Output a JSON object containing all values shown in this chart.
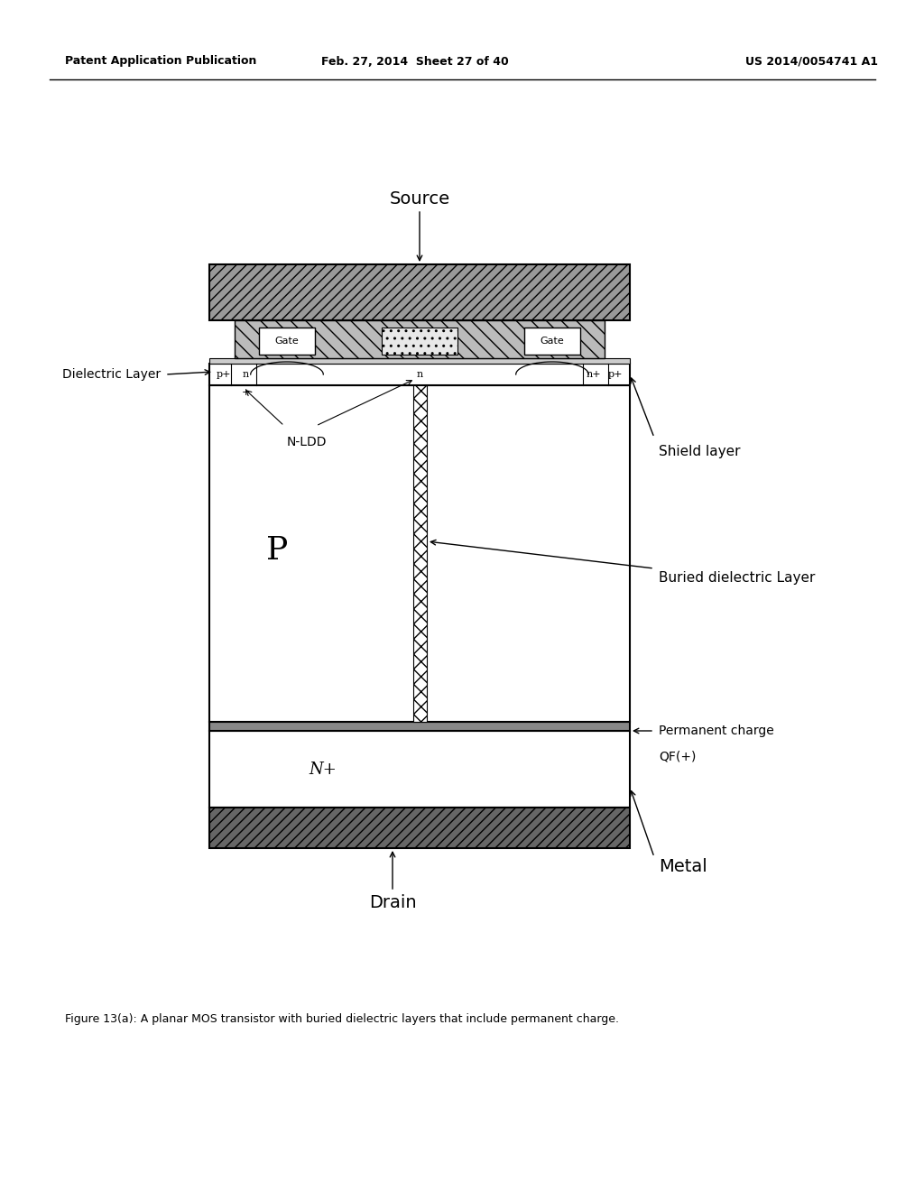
{
  "header_left": "Patent Application Publication",
  "header_mid": "Feb. 27, 2014  Sheet 27 of 40",
  "header_right": "US 2014/0054741 A1",
  "caption": "Figure 13(a): A planar MOS transistor with buried dielectric layers that include permanent charge.",
  "bg_color": "#ffffff",
  "label_source": "Source",
  "label_drain": "Drain",
  "label_gate": "Gate",
  "label_p": "P",
  "label_nplus": "N+",
  "label_nldd": "N-LDD",
  "label_dielectric": "Dielectric Layer",
  "label_shield": "Shield layer",
  "label_buried": "Buried dielectric Layer",
  "label_permanent": "Permanent charge",
  "label_qf": "QF(+)",
  "label_metal": "Metal"
}
